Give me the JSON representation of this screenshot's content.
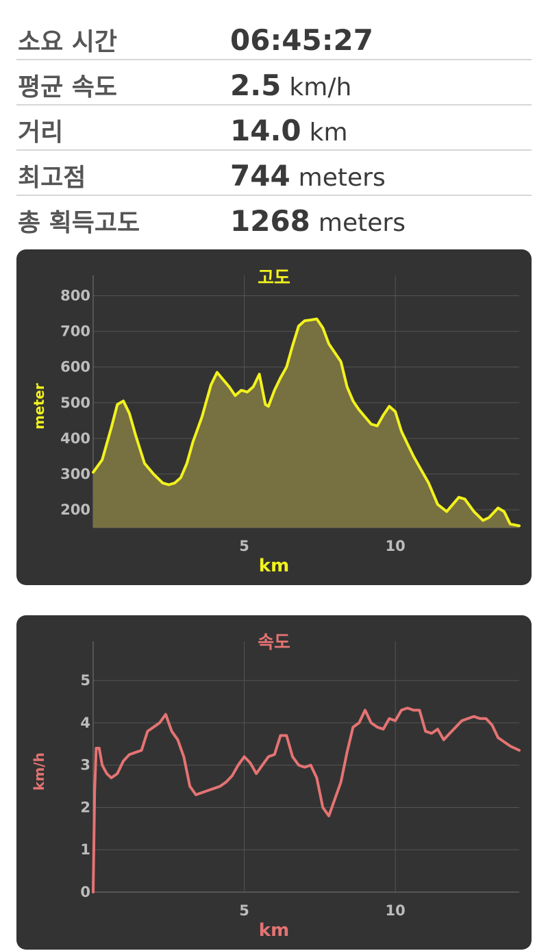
{
  "stats": [
    {
      "label": "소요 시간",
      "value": "06:45:27",
      "unit": ""
    },
    {
      "label": "평균 속도",
      "value": "2.5",
      "unit": "km/h"
    },
    {
      "label": "거리",
      "value": "14.0",
      "unit": "km"
    },
    {
      "label": "최고점",
      "value": "744",
      "unit": "meters"
    },
    {
      "label": "총 획득고도",
      "value": "1268",
      "unit": "meters"
    }
  ],
  "colors": {
    "elevation_line": "#f2f21e",
    "elevation_fill": "#777040",
    "speed_line": "#e57373",
    "card_bg": "#333333",
    "grid": "#555555"
  },
  "chart_data": [
    {
      "type": "area",
      "title": "고도",
      "xlabel": "km",
      "ylabel": "meter",
      "xlim": [
        0,
        14.1
      ],
      "ylim": [
        150,
        830
      ],
      "xticks": [
        5,
        10
      ],
      "yticks": [
        200,
        300,
        400,
        500,
        600,
        700,
        800
      ],
      "grid": true,
      "x": [
        0,
        0.3,
        0.6,
        0.8,
        1.0,
        1.2,
        1.4,
        1.7,
        2.0,
        2.3,
        2.5,
        2.7,
        2.9,
        3.1,
        3.3,
        3.6,
        3.9,
        4.1,
        4.3,
        4.5,
        4.7,
        4.9,
        5.1,
        5.3,
        5.5,
        5.7,
        5.8,
        6.0,
        6.2,
        6.4,
        6.6,
        6.8,
        7.0,
        7.2,
        7.4,
        7.6,
        7.8,
        8.0,
        8.2,
        8.4,
        8.6,
        8.8,
        9.0,
        9.2,
        9.4,
        9.6,
        9.8,
        10.0,
        10.2,
        10.4,
        10.6,
        10.8,
        11.1,
        11.4,
        11.7,
        11.9,
        12.1,
        12.3,
        12.6,
        12.9,
        13.1,
        13.4,
        13.6,
        13.8,
        14.1
      ],
      "values": [
        305,
        340,
        430,
        495,
        505,
        470,
        410,
        330,
        300,
        275,
        270,
        275,
        290,
        330,
        390,
        460,
        550,
        585,
        565,
        545,
        520,
        535,
        530,
        545,
        580,
        495,
        490,
        535,
        570,
        600,
        660,
        715,
        730,
        732,
        735,
        710,
        665,
        640,
        615,
        545,
        505,
        480,
        460,
        440,
        435,
        465,
        490,
        475,
        420,
        385,
        350,
        320,
        275,
        215,
        195,
        215,
        235,
        230,
        195,
        170,
        178,
        205,
        195,
        160,
        155
      ]
    },
    {
      "type": "line",
      "title": "속도",
      "xlabel": "km",
      "ylabel": "km/h",
      "xlim": [
        0,
        14.1
      ],
      "ylim": [
        0,
        5.7
      ],
      "xticks": [
        5,
        10
      ],
      "yticks": [
        0,
        1,
        2,
        3,
        4,
        5
      ],
      "grid": true,
      "x": [
        0.0,
        0.05,
        0.1,
        0.2,
        0.3,
        0.45,
        0.6,
        0.8,
        1.0,
        1.2,
        1.4,
        1.6,
        1.8,
        2.0,
        2.2,
        2.4,
        2.5,
        2.6,
        2.8,
        3.0,
        3.2,
        3.4,
        3.6,
        3.8,
        4.0,
        4.2,
        4.4,
        4.6,
        4.8,
        5.0,
        5.2,
        5.4,
        5.6,
        5.8,
        6.0,
        6.2,
        6.4,
        6.6,
        6.8,
        7.0,
        7.2,
        7.4,
        7.6,
        7.8,
        8.0,
        8.2,
        8.4,
        8.6,
        8.8,
        9.0,
        9.2,
        9.4,
        9.6,
        9.8,
        10.0,
        10.2,
        10.4,
        10.6,
        10.8,
        11.0,
        11.2,
        11.4,
        11.6,
        11.8,
        12.0,
        12.2,
        12.4,
        12.6,
        12.8,
        13.0,
        13.2,
        13.4,
        13.6,
        13.8,
        14.1
      ],
      "values": [
        0,
        2.4,
        3.4,
        3.4,
        3.0,
        2.8,
        2.7,
        2.8,
        3.1,
        3.25,
        3.3,
        3.35,
        3.8,
        3.9,
        4.0,
        4.2,
        4.0,
        3.8,
        3.6,
        3.2,
        2.5,
        2.3,
        2.35,
        2.4,
        2.45,
        2.5,
        2.6,
        2.75,
        3.0,
        3.2,
        3.05,
        2.8,
        3.0,
        3.2,
        3.25,
        3.7,
        3.7,
        3.2,
        3.0,
        2.95,
        3.0,
        2.7,
        2.0,
        1.8,
        2.2,
        2.6,
        3.3,
        3.9,
        4.0,
        4.3,
        4.0,
        3.9,
        3.85,
        4.1,
        4.05,
        4.3,
        4.35,
        4.3,
        4.3,
        3.8,
        3.75,
        3.85,
        3.6,
        3.75,
        3.9,
        4.05,
        4.1,
        4.15,
        4.1,
        4.1,
        3.95,
        3.65,
        3.55,
        3.45,
        3.35
      ]
    }
  ]
}
